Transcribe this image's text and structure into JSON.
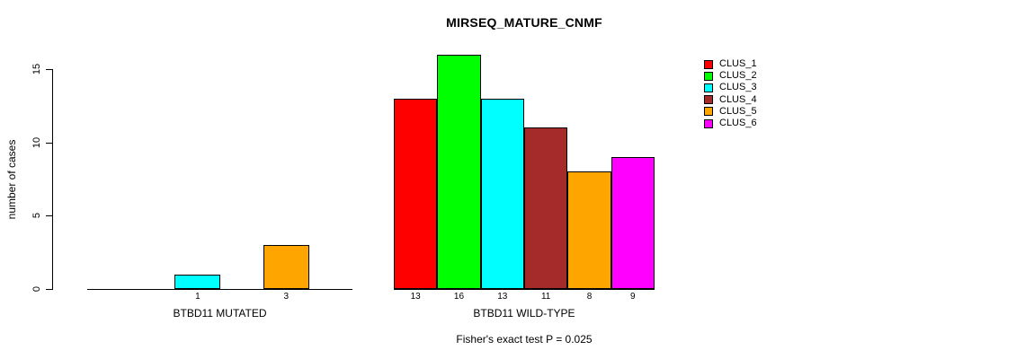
{
  "chart_data": {
    "type": "bar",
    "title": "MIRSEQ_MATURE_CNMF",
    "ylabel": "number of cases",
    "xlabel": "",
    "ylim": [
      0,
      16
    ],
    "yticks": [
      0,
      5,
      10,
      15
    ],
    "grid": false,
    "legend_position": "right",
    "categories": [
      "CLUS_1",
      "CLUS_2",
      "CLUS_3",
      "CLUS_4",
      "CLUS_5",
      "CLUS_6"
    ],
    "colors": [
      "#ff0000",
      "#00ff00",
      "#00ffff",
      "#a52a2a",
      "#ffa500",
      "#ff00ff"
    ],
    "series": [
      {
        "name": "BTBD11 MUTATED",
        "values": [
          0,
          0,
          1,
          0,
          3,
          0
        ]
      },
      {
        "name": "BTBD11 WILD-TYPE",
        "values": [
          13,
          16,
          13,
          11,
          8,
          9
        ]
      }
    ],
    "bar_value_labels": [
      [
        "1",
        "3"
      ],
      [
        "13",
        "16",
        "13",
        "11",
        "8",
        "9"
      ]
    ],
    "annotation": "Fisher's exact test P = 0.025"
  }
}
